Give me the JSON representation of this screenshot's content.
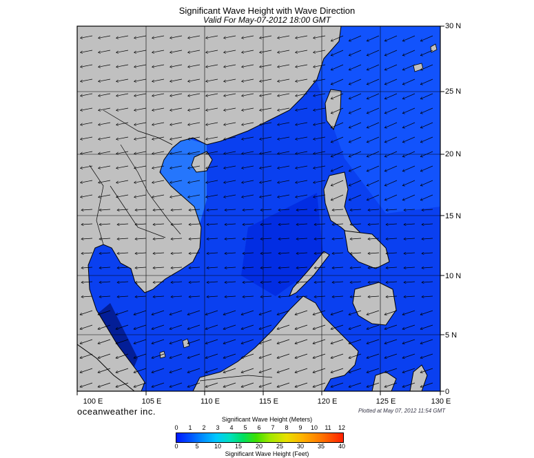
{
  "title": "Significant Wave Height with Wave Direction",
  "subtitle": "Valid For May-07-2012 18:00 GMT",
  "lat_labels": [
    "30 N",
    "25 N",
    "20 N",
    "15 N",
    "10 N",
    "5 N",
    "0"
  ],
  "lon_labels": [
    "100 E",
    "105 E",
    "110 E",
    "115 E",
    "120 E",
    "125 E",
    "130 E"
  ],
  "brand": "oceanweather inc.",
  "plotted": "Plotted at May 07, 2012 11:54 GMT",
  "legend": {
    "meters_title": "Significant Wave Height (Meters)",
    "feet_title": "Significant Wave Height (Feet)",
    "meters_ticks": [
      "0",
      "1",
      "2",
      "3",
      "4",
      "5",
      "6",
      "7",
      "8",
      "9",
      "10",
      "11",
      "12"
    ],
    "feet_ticks": [
      "0",
      "5",
      "10",
      "15",
      "20",
      "25",
      "30",
      "35",
      "40"
    ]
  },
  "colors": {
    "land": "#c0c0c0",
    "sea_deep": "#0018e8",
    "sea_mid": "#0a4cf0",
    "sea_light": "#1e78ff"
  }
}
